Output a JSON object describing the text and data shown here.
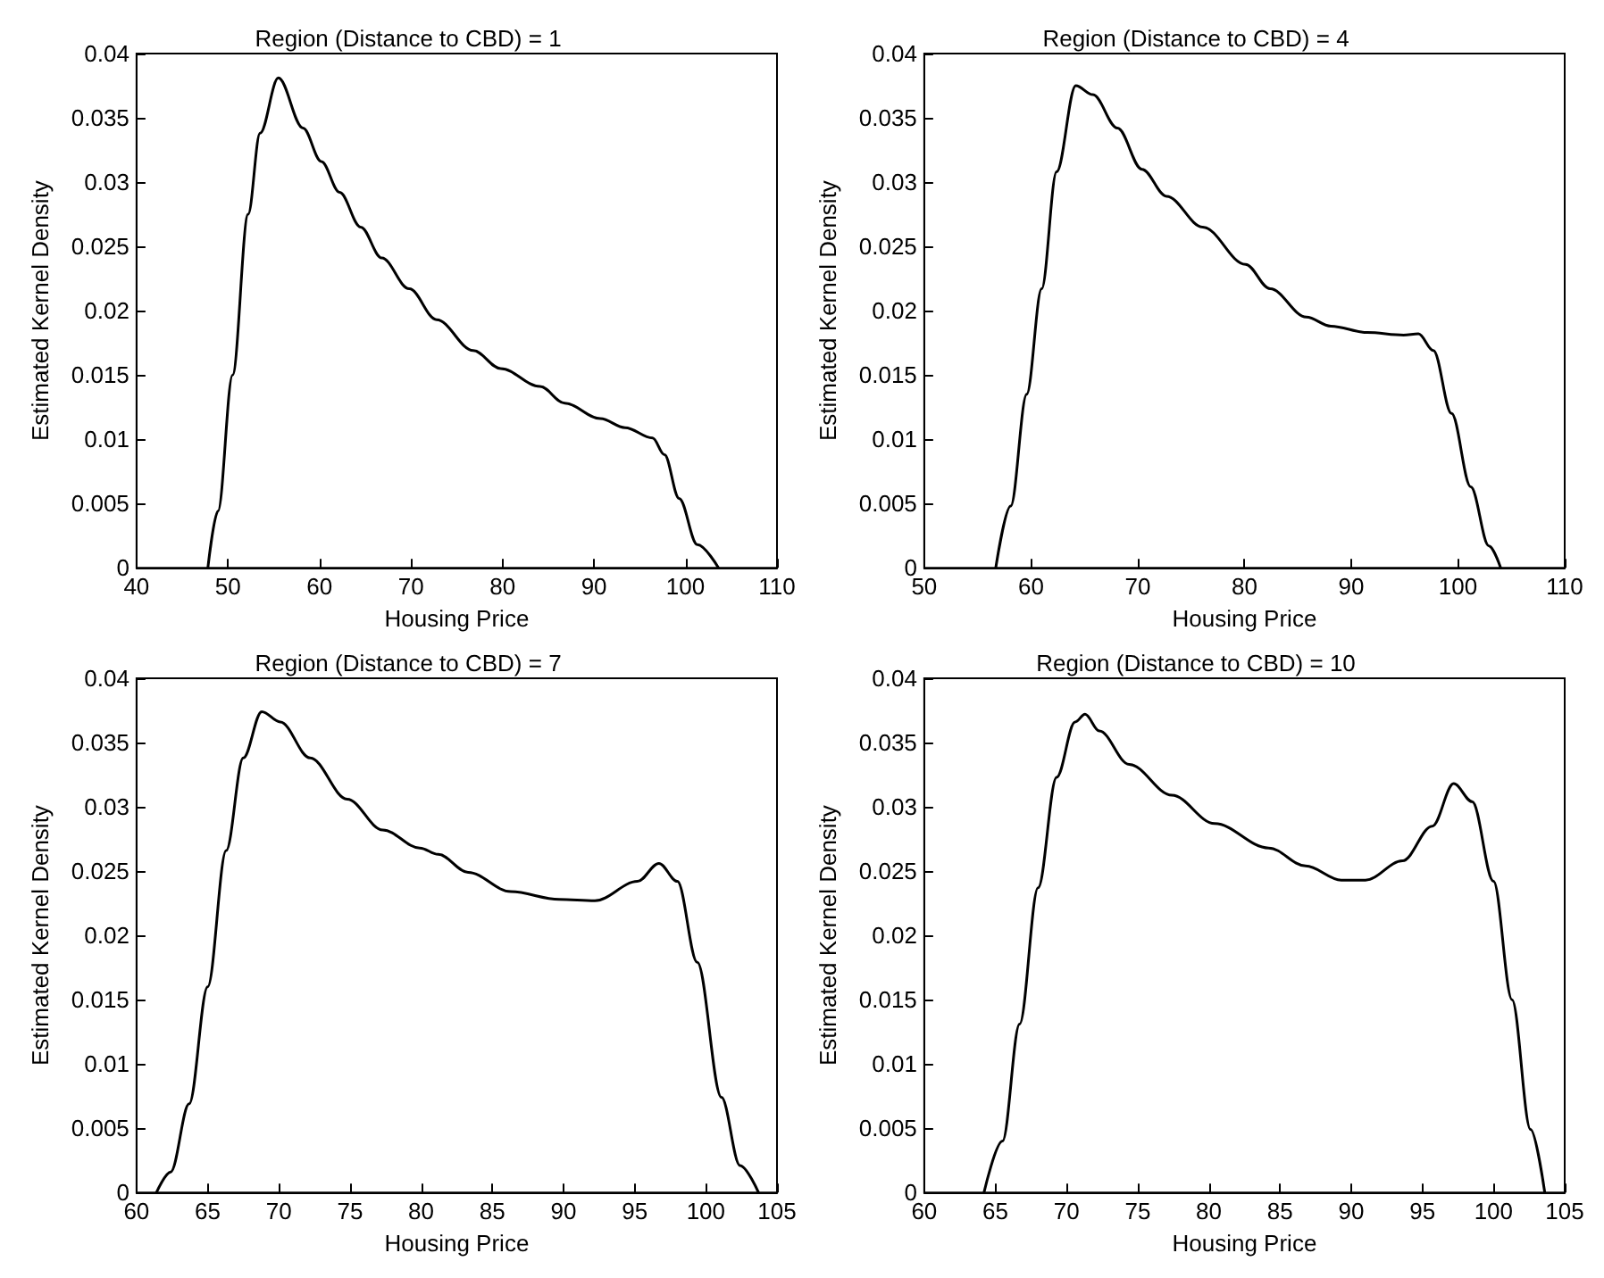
{
  "chart_data": [
    {
      "type": "line",
      "title": "Region (Distance to CBD) = 1",
      "xlabel": "Housing Price",
      "ylabel": "Estimated Kernel Density",
      "xlim": [
        40,
        110
      ],
      "xticks": [
        40,
        50,
        60,
        70,
        80,
        90,
        100,
        110
      ],
      "ylim": [
        0,
        0.04
      ],
      "yticks": [
        0,
        0.005,
        0.01,
        0.015,
        0.02,
        0.025,
        0.03,
        0.035,
        0.04
      ],
      "grid": false,
      "marker": "none",
      "line_style": "solid",
      "series": [
        {
          "color": "#000000",
          "x": [
            47.8,
            48.9,
            50.5,
            52.2,
            53.5,
            55.5,
            58.2,
            60.2,
            62.2,
            64.5,
            66.8,
            69.8,
            72.8,
            76.8,
            79.8,
            84.1,
            86.8,
            90.7,
            93.4,
            96.4,
            97.7,
            99.3,
            101.3,
            103.6
          ],
          "values": [
            0,
            0.0044,
            0.015,
            0.0275,
            0.0338,
            0.0381,
            0.0342,
            0.0316,
            0.0292,
            0.0265,
            0.0241,
            0.0217,
            0.0193,
            0.0169,
            0.0155,
            0.0141,
            0.0128,
            0.0116,
            0.0109,
            0.0101,
            0.0088,
            0.0054,
            0.0018,
            0
          ]
        }
      ]
    },
    {
      "type": "line",
      "title": "Region (Distance to CBD) = 4",
      "xlabel": "Housing Price",
      "ylabel": "Estimated Kernel Density",
      "xlim": [
        50,
        110
      ],
      "xticks": [
        50,
        60,
        70,
        80,
        90,
        100,
        110
      ],
      "ylim": [
        0,
        0.04
      ],
      "yticks": [
        0,
        0.005,
        0.01,
        0.015,
        0.02,
        0.025,
        0.03,
        0.035,
        0.04
      ],
      "grid": false,
      "marker": "none",
      "line_style": "solid",
      "series": [
        {
          "color": "#000000",
          "x": [
            56.7,
            58.1,
            59.6,
            61,
            62.4,
            64.2,
            65.8,
            68.1,
            70.4,
            72.7,
            76.1,
            80.1,
            82.4,
            85.8,
            88.1,
            91.5,
            94.9,
            96.3,
            97.7,
            99.4,
            101.2,
            102.9,
            104
          ],
          "values": [
            0,
            0.0048,
            0.0135,
            0.0217,
            0.0308,
            0.0375,
            0.0368,
            0.0342,
            0.031,
            0.0289,
            0.0265,
            0.0236,
            0.0217,
            0.0195,
            0.0188,
            0.0183,
            0.0181,
            0.0182,
            0.0169,
            0.012,
            0.0063,
            0.0017,
            0
          ]
        }
      ]
    },
    {
      "type": "line",
      "title": "Region (Distance to CBD) = 7",
      "xlabel": "Housing Price",
      "ylabel": "Estimated Kernel Density",
      "xlim": [
        60,
        105
      ],
      "xticks": [
        60,
        65,
        70,
        75,
        80,
        85,
        90,
        95,
        100,
        105
      ],
      "ylim": [
        0,
        0.04
      ],
      "yticks": [
        0,
        0.005,
        0.01,
        0.015,
        0.02,
        0.025,
        0.03,
        0.035,
        0.04
      ],
      "grid": false,
      "marker": "none",
      "line_style": "solid",
      "series": [
        {
          "color": "#000000",
          "x": [
            61.4,
            62.4,
            63.7,
            65,
            66.3,
            67.5,
            68.8,
            70.1,
            72.2,
            74.8,
            77.3,
            79.9,
            81.2,
            83.3,
            86.3,
            89.7,
            92.2,
            95.2,
            96.7,
            98,
            99.4,
            101.1,
            102.4,
            103.7
          ],
          "values": [
            0,
            0.0016,
            0.0069,
            0.016,
            0.0266,
            0.0338,
            0.0374,
            0.0366,
            0.0338,
            0.0306,
            0.0282,
            0.0268,
            0.0263,
            0.0249,
            0.0234,
            0.0228,
            0.0227,
            0.0242,
            0.0256,
            0.0242,
            0.0179,
            0.0074,
            0.0021,
            0
          ]
        }
      ]
    },
    {
      "type": "line",
      "title": "Region (Distance to CBD) = 10",
      "xlabel": "Housing Price",
      "ylabel": "Estimated Kernel Density",
      "xlim": [
        60,
        105
      ],
      "xticks": [
        60,
        65,
        70,
        75,
        80,
        85,
        90,
        95,
        100,
        105
      ],
      "ylim": [
        0,
        0.04
      ],
      "yticks": [
        0,
        0.005,
        0.01,
        0.015,
        0.02,
        0.025,
        0.03,
        0.035,
        0.04
      ],
      "grid": false,
      "marker": "none",
      "line_style": "solid",
      "series": [
        {
          "color": "#000000",
          "x": [
            64.2,
            65.5,
            66.7,
            68,
            69.3,
            70.6,
            71.3,
            72.3,
            74.4,
            77.4,
            80.4,
            84.2,
            86.8,
            89.3,
            91,
            93.6,
            95.7,
            97.2,
            98.5,
            100,
            101.3,
            102.6,
            103.6
          ],
          "values": [
            0,
            0.004,
            0.0131,
            0.0237,
            0.0323,
            0.0366,
            0.0372,
            0.0359,
            0.0333,
            0.0309,
            0.0287,
            0.0268,
            0.0254,
            0.0243,
            0.0243,
            0.0258,
            0.0285,
            0.0318,
            0.0304,
            0.0242,
            0.015,
            0.0049,
            0
          ]
        }
      ]
    }
  ]
}
